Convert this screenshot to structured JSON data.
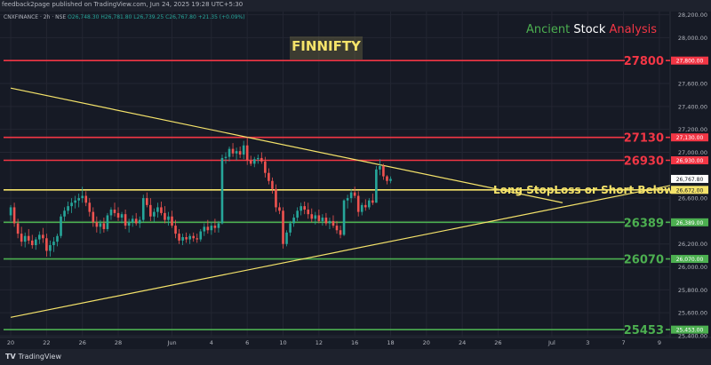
{
  "header": {
    "published": "feedback2page published on TradingView.com, Jun 24, 2025 19:28 UTC+5:30"
  },
  "symbol": {
    "name": "CNXFINANCE · 2h · NSE",
    "ohlc": "O26,748.30 H26,781.80 L26,739.25 C26,767.80 +21.35 (+0.09%)"
  },
  "brand": {
    "word1": "Ancient",
    "word2": "Stock",
    "word3": "Analysis"
  },
  "title": "FINNIFTY",
  "annotation": "Long StopLoss or Short Below",
  "footer": {
    "logo": "TradingView"
  },
  "colors": {
    "background": "#161a25",
    "up": "#26a69a",
    "down": "#ef5350",
    "resistance": "#f23645",
    "support": "#4caf50",
    "trendline": "#f5e36a",
    "current": "#ffffff"
  },
  "chart_data": {
    "type": "candlestick",
    "ylim": [
      25400,
      28220
    ],
    "y_ticks": [
      "28,200.00",
      "28,000.00",
      "27,600.00",
      "27,400.00",
      "27,200.00",
      "27,000.00",
      "26,600.00",
      "26,400.00",
      "26,200.00",
      "26,000.00",
      "25,800.00",
      "25,600.00",
      "25,400.00"
    ],
    "y_tick_values": [
      28200,
      28000,
      27600,
      27400,
      27200,
      27000,
      26600,
      26400,
      26200,
      26000,
      25800,
      25600,
      25400
    ],
    "x_ticks": [
      "20",
      "22",
      "26",
      "28",
      "Jun",
      "4",
      "6",
      "10",
      "12",
      "16",
      "18",
      "20",
      "24",
      "26",
      "Jul",
      "3",
      "7",
      "9"
    ],
    "x_tick_index": [
      0,
      10,
      20,
      30,
      45,
      56,
      66,
      76,
      86,
      96,
      106,
      116,
      126,
      136,
      151,
      161,
      171,
      181
    ],
    "x_range": [
      -2,
      184
    ],
    "levels": [
      {
        "value": 27800,
        "label": "27800",
        "badge": "27,800.00",
        "kind": "resistance"
      },
      {
        "value": 27130,
        "label": "27130",
        "badge": "27,130.00",
        "kind": "resistance"
      },
      {
        "value": 26930,
        "label": "26930",
        "badge": "26,930.00",
        "kind": "resistance"
      },
      {
        "value": 26672,
        "label": "",
        "badge": "26,672.00",
        "kind": "stoploss"
      },
      {
        "value": 26389,
        "label": "26389",
        "badge": "26,389.00",
        "kind": "support"
      },
      {
        "value": 26070,
        "label": "26070",
        "badge": "26,070.00",
        "kind": "support"
      },
      {
        "value": 25453,
        "label": "25453",
        "badge": "25,453.00",
        "kind": "support"
      }
    ],
    "current_price": {
      "value": 26767.8,
      "badge": "26,767.80"
    },
    "trendlines": [
      {
        "from": [
          0,
          27560
        ],
        "to": [
          154,
          26560
        ]
      },
      {
        "from": [
          0,
          25560
        ],
        "to": [
          184,
          26710
        ]
      }
    ],
    "candles": [
      [
        0,
        26450,
        26540,
        26400,
        26520
      ],
      [
        1,
        26520,
        26560,
        26350,
        26380
      ],
      [
        2,
        26380,
        26420,
        26250,
        26290
      ],
      [
        3,
        26290,
        26350,
        26180,
        26220
      ],
      [
        4,
        26220,
        26300,
        26170,
        26270
      ],
      [
        5,
        26270,
        26330,
        26200,
        26230
      ],
      [
        6,
        26230,
        26280,
        26160,
        26190
      ],
      [
        7,
        26190,
        26260,
        26150,
        26240
      ],
      [
        8,
        26240,
        26310,
        26200,
        26280
      ],
      [
        9,
        26280,
        26340,
        26210,
        26250
      ],
      [
        10,
        26250,
        26290,
        26090,
        26140
      ],
      [
        11,
        26140,
        26230,
        26090,
        26190
      ],
      [
        12,
        26190,
        26260,
        26130,
        26220
      ],
      [
        13,
        26220,
        26290,
        26180,
        26270
      ],
      [
        14,
        26270,
        26460,
        26250,
        26440
      ],
      [
        15,
        26440,
        26520,
        26400,
        26490
      ],
      [
        16,
        26490,
        26570,
        26460,
        26530
      ],
      [
        17,
        26530,
        26600,
        26470,
        26560
      ],
      [
        18,
        26560,
        26620,
        26510,
        26580
      ],
      [
        19,
        26580,
        26640,
        26520,
        26600
      ],
      [
        20,
        26600,
        26700,
        26560,
        26620
      ],
      [
        21,
        26620,
        26660,
        26530,
        26560
      ],
      [
        22,
        26560,
        26600,
        26440,
        26480
      ],
      [
        23,
        26480,
        26520,
        26350,
        26390
      ],
      [
        24,
        26390,
        26440,
        26300,
        26350
      ],
      [
        25,
        26350,
        26410,
        26290,
        26380
      ],
      [
        26,
        26380,
        26430,
        26300,
        26330
      ],
      [
        27,
        26330,
        26470,
        26310,
        26450
      ],
      [
        28,
        26450,
        26520,
        26410,
        26500
      ],
      [
        29,
        26500,
        26560,
        26440,
        26470
      ],
      [
        30,
        26470,
        26520,
        26400,
        26430
      ],
      [
        31,
        26430,
        26480,
        26380,
        26460
      ],
      [
        32,
        26460,
        26500,
        26330,
        26360
      ],
      [
        33,
        26360,
        26420,
        26300,
        26390
      ],
      [
        34,
        26390,
        26450,
        26350,
        26420
      ],
      [
        35,
        26420,
        26470,
        26360,
        26380
      ],
      [
        36,
        26380,
        26440,
        26340,
        26410
      ],
      [
        37,
        26410,
        26630,
        26390,
        26600
      ],
      [
        38,
        26600,
        26650,
        26520,
        26540
      ],
      [
        39,
        26540,
        26600,
        26400,
        26440
      ],
      [
        40,
        26440,
        26510,
        26390,
        26480
      ],
      [
        41,
        26480,
        26560,
        26430,
        26520
      ],
      [
        42,
        26520,
        26570,
        26450,
        26470
      ],
      [
        43,
        26470,
        26530,
        26380,
        26410
      ],
      [
        44,
        26410,
        26480,
        26360,
        26440
      ],
      [
        45,
        26440,
        26490,
        26340,
        26360
      ],
      [
        46,
        26360,
        26410,
        26250,
        26290
      ],
      [
        47,
        26290,
        26330,
        26200,
        26230
      ],
      [
        48,
        26230,
        26290,
        26190,
        26260
      ],
      [
        49,
        26260,
        26300,
        26210,
        26240
      ],
      [
        50,
        26240,
        26290,
        26200,
        26270
      ],
      [
        51,
        26270,
        26300,
        26220,
        26250
      ],
      [
        52,
        26250,
        26290,
        26210,
        26240
      ],
      [
        53,
        26240,
        26330,
        26220,
        26310
      ],
      [
        54,
        26310,
        26380,
        26270,
        26350
      ],
      [
        55,
        26350,
        26410,
        26290,
        26320
      ],
      [
        56,
        26320,
        26390,
        26280,
        26360
      ],
      [
        57,
        26360,
        26420,
        26300,
        26340
      ],
      [
        58,
        26340,
        26400,
        26300,
        26380
      ],
      [
        59,
        26380,
        26980,
        26370,
        26950
      ],
      [
        60,
        26950,
        27000,
        26900,
        26960
      ],
      [
        61,
        26960,
        27050,
        26920,
        27030
      ],
      [
        62,
        27030,
        27080,
        26960,
        26990
      ],
      [
        63,
        26990,
        27040,
        26930,
        27010
      ],
      [
        64,
        27010,
        27050,
        26950,
        26980
      ],
      [
        65,
        26980,
        27100,
        26940,
        27060
      ],
      [
        66,
        27060,
        27130,
        26890,
        26930
      ],
      [
        67,
        26930,
        26970,
        26880,
        26900
      ],
      [
        68,
        26900,
        26960,
        26870,
        26940
      ],
      [
        69,
        26940,
        26980,
        26900,
        26950
      ],
      [
        70,
        26950,
        27000,
        26900,
        26920
      ],
      [
        71,
        26920,
        26960,
        26780,
        26820
      ],
      [
        72,
        26820,
        26860,
        26720,
        26750
      ],
      [
        73,
        26750,
        26780,
        26640,
        26680
      ],
      [
        74,
        26680,
        26720,
        26480,
        26520
      ],
      [
        75,
        26520,
        26560,
        26460,
        26490
      ],
      [
        76,
        26490,
        26520,
        26160,
        26200
      ],
      [
        77,
        26200,
        26320,
        26180,
        26300
      ],
      [
        78,
        26300,
        26400,
        26270,
        26380
      ],
      [
        79,
        26380,
        26460,
        26350,
        26430
      ],
      [
        80,
        26430,
        26520,
        26400,
        26490
      ],
      [
        81,
        26490,
        26560,
        26450,
        26530
      ],
      [
        82,
        26530,
        26570,
        26460,
        26500
      ],
      [
        83,
        26500,
        26560,
        26420,
        26460
      ],
      [
        84,
        26460,
        26510,
        26390,
        26420
      ],
      [
        85,
        26420,
        26480,
        26370,
        26450
      ],
      [
        86,
        26450,
        26500,
        26380,
        26400
      ],
      [
        87,
        26400,
        26460,
        26360,
        26430
      ],
      [
        88,
        26430,
        26470,
        26360,
        26380
      ],
      [
        89,
        26380,
        26430,
        26330,
        26400
      ],
      [
        90,
        26400,
        26450,
        26340,
        26360
      ],
      [
        91,
        26360,
        26400,
        26290,
        26320
      ],
      [
        92,
        26320,
        26360,
        26250,
        26280
      ],
      [
        93,
        26280,
        26590,
        26270,
        26580
      ],
      [
        94,
        26580,
        26630,
        26510,
        26600
      ],
      [
        95,
        26600,
        26680,
        26560,
        26650
      ],
      [
        96,
        26650,
        26700,
        26600,
        26620
      ],
      [
        97,
        26620,
        26660,
        26440,
        26480
      ],
      [
        98,
        26480,
        26560,
        26450,
        26540
      ],
      [
        99,
        26540,
        26590,
        26490,
        26520
      ],
      [
        100,
        26520,
        26600,
        26500,
        26580
      ],
      [
        101,
        26580,
        26640,
        26540,
        26560
      ],
      [
        102,
        26560,
        26880,
        26560,
        26850
      ],
      [
        103,
        26850,
        26940,
        26800,
        26880
      ],
      [
        104,
        26880,
        26900,
        26760,
        26790
      ],
      [
        105,
        26790,
        26800,
        26720,
        26750
      ],
      [
        106,
        26750,
        26790,
        26730,
        26768
      ]
    ]
  }
}
